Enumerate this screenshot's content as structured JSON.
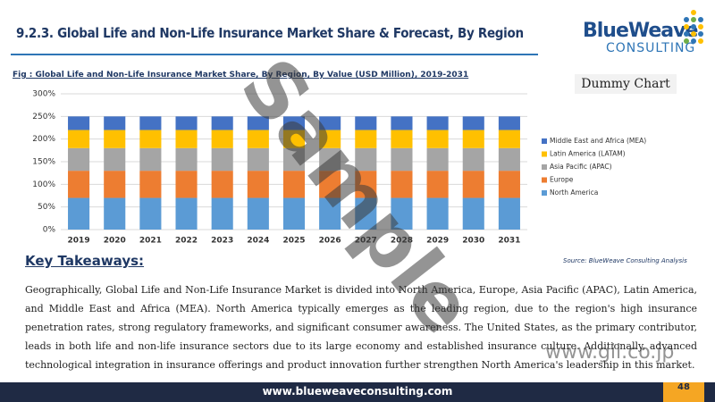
{
  "header": {
    "title": "9.2.3. Global Life and Non-Life Insurance  Market Share & Forecast, By Region"
  },
  "logo": {
    "name": "BlueWeave",
    "tagline": "CONSULTING"
  },
  "figure": {
    "caption": "Fig :  Global Life and Non-Life Insurance  Market Share, By Region,  By Value (USD Million), 2019-2031",
    "badge": "Dummy Chart",
    "source": "Source: BlueWeave Consulting Analysis"
  },
  "chart_data": {
    "type": "stacked_bar",
    "categories": [
      "2019",
      "2020",
      "2021",
      "2022",
      "2023",
      "2024",
      "2025",
      "2026",
      "2027",
      "2028",
      "2029",
      "2030",
      "2031"
    ],
    "series": [
      {
        "name": "North America",
        "color": "#5b9bd5",
        "values": [
          70,
          70,
          70,
          70,
          70,
          70,
          70,
          70,
          70,
          70,
          70,
          70,
          70
        ]
      },
      {
        "name": "Europe",
        "color": "#ed7d31",
        "values": [
          60,
          60,
          60,
          60,
          60,
          60,
          60,
          60,
          60,
          60,
          60,
          60,
          60
        ]
      },
      {
        "name": "Asia Pacific (APAC)",
        "color": "#a5a5a5",
        "values": [
          50,
          50,
          50,
          50,
          50,
          50,
          50,
          50,
          50,
          50,
          50,
          50,
          50
        ]
      },
      {
        "name": "Latin America (LATAM)",
        "color": "#ffc000",
        "values": [
          40,
          40,
          40,
          40,
          40,
          40,
          40,
          40,
          40,
          40,
          40,
          40,
          40
        ]
      },
      {
        "name": "Middle East and Africa (MEA)",
        "color": "#4472c4",
        "values": [
          30,
          30,
          30,
          30,
          30,
          30,
          30,
          30,
          30,
          30,
          30,
          30,
          30
        ]
      }
    ],
    "ylim": [
      0,
      300
    ],
    "yticks": [
      {
        "value": 0,
        "label": "0%"
      },
      {
        "value": 50,
        "label": "50%"
      },
      {
        "value": 100,
        "label": "100%"
      },
      {
        "value": 150,
        "label": "150%"
      },
      {
        "value": 200,
        "label": "200%"
      },
      {
        "value": 250,
        "label": "250%"
      },
      {
        "value": 300,
        "label": "300%"
      }
    ],
    "grid": true,
    "legend": "right"
  },
  "takeaways": {
    "heading": "Key Takeaways:",
    "text": "Geographically, Global Life and Non-Life Insurance Market is divided into North America, Europe, Asia Pacific (APAC), Latin America, and Middle East and Africa (MEA). North America typically emerges as the leading region, due to the region's high insurance penetration rates, strong regulatory frameworks, and significant consumer awareness. The United States, as the primary contributor, leads in both life and non-life insurance sectors due to its large economy and established insurance culture. Additionally, advanced technological integration in insurance offerings and product innovation further strengthen North America's leadership in this market."
  },
  "footer": {
    "url": "www.blueweaveconsulting.com",
    "page": "48"
  },
  "watermark": {
    "text": "Sample",
    "site": "www.gii.co.jp"
  }
}
